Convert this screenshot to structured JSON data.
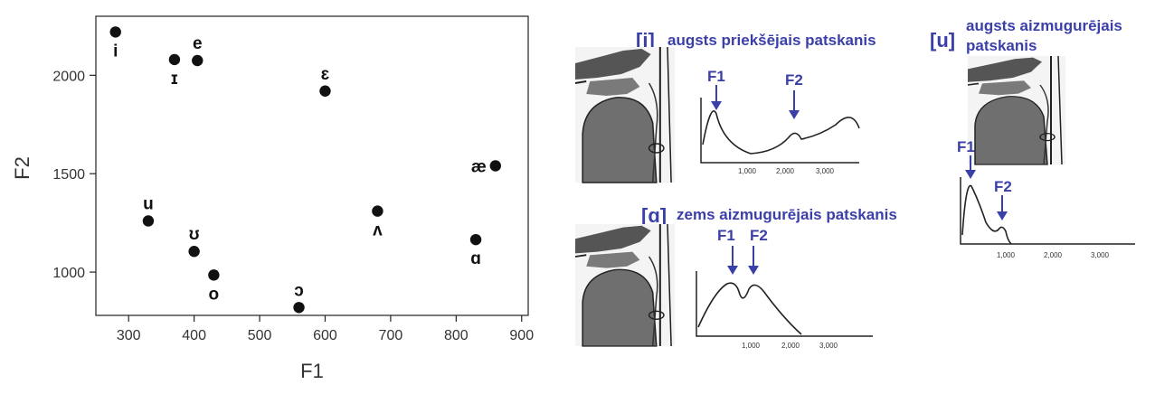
{
  "chart_data": {
    "type": "scatter",
    "xlabel": "F1",
    "ylabel": "F2",
    "xlim": [
      250,
      910
    ],
    "ylim": [
      780,
      2300
    ],
    "xticks": [
      300,
      400,
      500,
      600,
      700,
      800,
      900
    ],
    "yticks": [
      1000,
      1500,
      2000
    ],
    "points": [
      {
        "label": "i",
        "x": 280,
        "y": 2220,
        "label_pos": "below"
      },
      {
        "label": "ɪ",
        "x": 370,
        "y": 2080,
        "label_pos": "below"
      },
      {
        "label": "e",
        "x": 405,
        "y": 2075,
        "label_pos": "above"
      },
      {
        "label": "ɛ",
        "x": 600,
        "y": 1920,
        "label_pos": "above"
      },
      {
        "label": "æ",
        "x": 860,
        "y": 1540,
        "label_pos": "left"
      },
      {
        "label": "u",
        "x": 330,
        "y": 1260,
        "label_pos": "above"
      },
      {
        "label": "ʊ",
        "x": 400,
        "y": 1105,
        "label_pos": "above"
      },
      {
        "label": "o",
        "x": 430,
        "y": 985,
        "label_pos": "below"
      },
      {
        "label": "ɔ",
        "x": 560,
        "y": 820,
        "label_pos": "above"
      },
      {
        "label": "ʌ",
        "x": 680,
        "y": 1310,
        "label_pos": "below"
      },
      {
        "label": "ɑ",
        "x": 830,
        "y": 1165,
        "label_pos": "below"
      }
    ]
  },
  "vowel_i": {
    "symbol": "[i]",
    "description": "augsts priekšējais patskanis",
    "formants": [
      "F1",
      "F2"
    ],
    "axis_ticks": [
      "1,000",
      "2,000",
      "3,000"
    ]
  },
  "vowel_u": {
    "symbol": "[u]",
    "description_line1": "augsts aizmugurējais",
    "description_line2": "patskanis",
    "formants": [
      "F1",
      "F2"
    ],
    "axis_ticks": [
      "1,000",
      "2,000",
      "3,000"
    ]
  },
  "vowel_a": {
    "symbol": "[ɑ]",
    "description": "zems aizmugurējais patskanis",
    "formants": [
      "F1",
      "F2"
    ],
    "axis_ticks": [
      "1,000",
      "2,000",
      "3,000"
    ]
  },
  "colors": {
    "accent": "#3b3fa8",
    "ink": "#1a1a1a",
    "tract_fill": "#6f6f6f"
  }
}
